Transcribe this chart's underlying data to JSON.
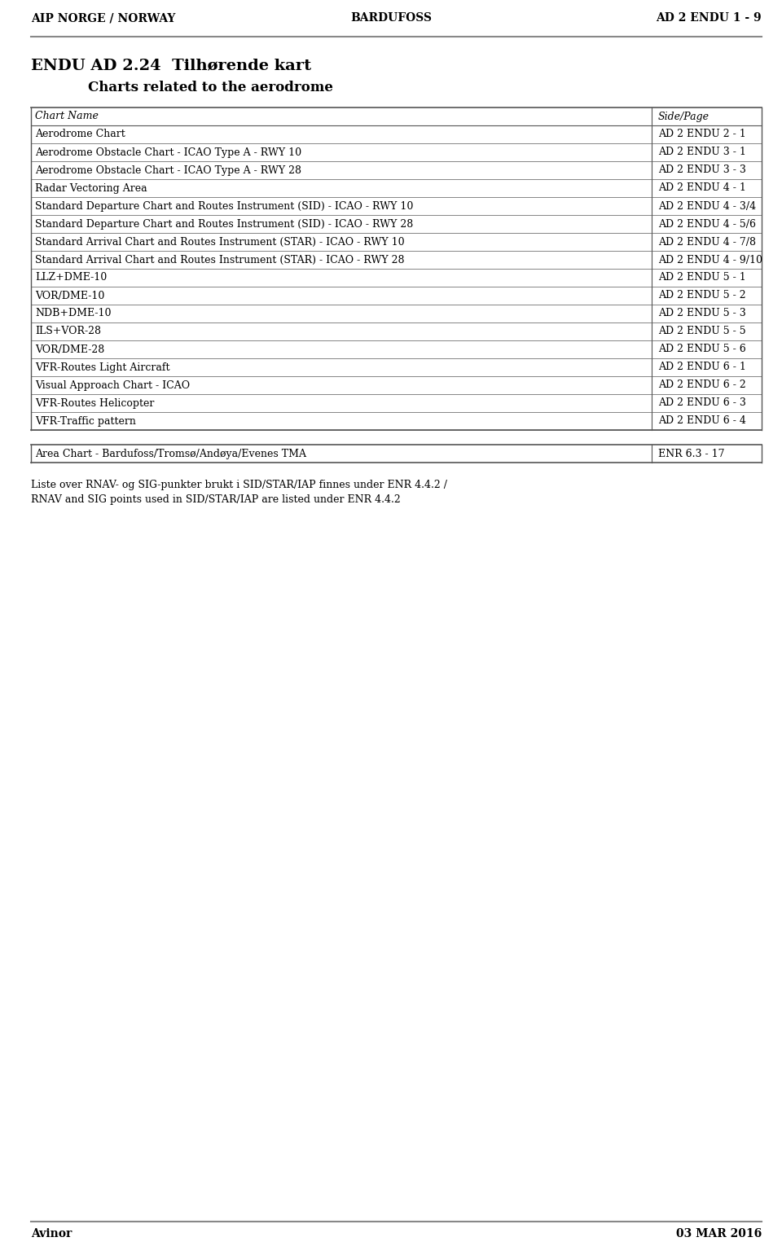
{
  "header_left": "AIP NORGE / NORWAY",
  "header_center": "BARDUFOSS",
  "header_right": "AD 2 ENDU 1 - 9",
  "section_number": "ENDU AD 2.24",
  "section_title_no": "Tilhørende kart",
  "section_title_en": "Charts related to the aerodrome",
  "col_header_name": "Chart Name",
  "col_header_page": "Side/Page",
  "table_rows": [
    [
      "Aerodrome Chart",
      "AD 2 ENDU 2 - 1"
    ],
    [
      "Aerodrome Obstacle Chart - ICAO Type A - RWY 10",
      "AD 2 ENDU 3 - 1"
    ],
    [
      "Aerodrome Obstacle Chart - ICAO Type A - RWY 28",
      "AD 2 ENDU 3 - 3"
    ],
    [
      "Radar Vectoring Area",
      "AD 2 ENDU 4 - 1"
    ],
    [
      "Standard Departure Chart and Routes Instrument (SID) - ICAO - RWY 10",
      "AD 2 ENDU 4 - 3/4"
    ],
    [
      "Standard Departure Chart and Routes Instrument (SID) - ICAO - RWY 28",
      "AD 2 ENDU 4 - 5/6"
    ],
    [
      "Standard Arrival Chart and Routes Instrument (STAR) - ICAO - RWY 10",
      "AD 2 ENDU 4 - 7/8"
    ],
    [
      "Standard Arrival Chart and Routes Instrument (STAR) - ICAO - RWY 28",
      "AD 2 ENDU 4 - 9/10"
    ],
    [
      "LLZ+DME-10",
      "AD 2 ENDU 5 - 1"
    ],
    [
      "VOR/DME-10",
      "AD 2 ENDU 5 - 2"
    ],
    [
      "NDB+DME-10",
      "AD 2 ENDU 5 - 3"
    ],
    [
      "ILS+VOR-28",
      "AD 2 ENDU 5 - 5"
    ],
    [
      "VOR/DME-28",
      "AD 2 ENDU 5 - 6"
    ],
    [
      "VFR-Routes Light Aircraft",
      "AD 2 ENDU 6 - 1"
    ],
    [
      "Visual Approach Chart - ICAO",
      "AD 2 ENDU 6 - 2"
    ],
    [
      "VFR-Routes Helicopter",
      "AD 2 ENDU 6 - 3"
    ],
    [
      "VFR-Traffic pattern",
      "AD 2 ENDU 6 - 4"
    ]
  ],
  "extra_row": [
    "Area Chart - Bardufoss/Tromsø/Andøya/Evenes TMA",
    "ENR 6.3 - 17"
  ],
  "note_line1": "Liste over RNAV- og SIG-punkter brukt i SID/STAR/IAP finnes under ENR 4.4.2 /",
  "note_line2": "RNAV and SIG points used in SID/STAR/IAP are listed under ENR 4.4.2",
  "footer_left": "Avinor",
  "footer_right": "03 MAR 2016",
  "bg_color": "#ffffff",
  "line_color": "#555555",
  "header_font_size": 10,
  "title_font_size": 14,
  "subtitle_font_size": 12,
  "table_font_size": 9,
  "col_header_font_size": 9,
  "footer_font_size": 10,
  "note_font_size": 9
}
